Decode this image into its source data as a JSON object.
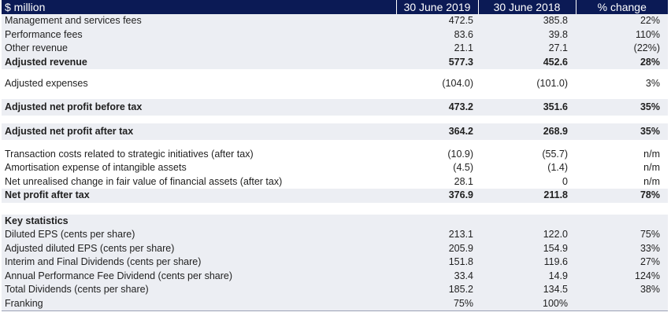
{
  "header": {
    "label": "$ million",
    "col_2019": "30 June 2019",
    "col_2018": "30 June 2018",
    "col_change": "% change"
  },
  "rows": [
    {
      "label": "Management and services fees",
      "v2019": "472.5",
      "v2018": "385.8",
      "change": "22%"
    },
    {
      "label": "Performance fees",
      "v2019": "83.6",
      "v2018": "39.8",
      "change": "110%"
    },
    {
      "label": "Other revenue",
      "v2019": "21.1",
      "v2018": "27.1",
      "change": "(22%)"
    },
    {
      "label": "Adjusted revenue",
      "v2019": "577.3",
      "v2018": "452.6",
      "change": "28%"
    },
    {
      "label": "Adjusted expenses",
      "v2019": "(104.0)",
      "v2018": "(101.0)",
      "change": "3%"
    },
    {
      "label": "Adjusted net profit before tax",
      "v2019": "473.2",
      "v2018": "351.6",
      "change": "35%"
    },
    {
      "label": "Adjusted net profit after tax",
      "v2019": "364.2",
      "v2018": "268.9",
      "change": "35%"
    },
    {
      "label": "Transaction costs related to strategic initiatives (after tax)",
      "v2019": "(10.9)",
      "v2018": "(55.7)",
      "change": "n/m"
    },
    {
      "label": "Amortisation expense of intangible assets",
      "v2019": "(4.5)",
      "v2018": "(1.4)",
      "change": "n/m"
    },
    {
      "label": "Net unrealised change in fair value of financial assets (after tax)",
      "v2019": "28.1",
      "v2018": "0",
      "change": "n/m"
    },
    {
      "label": "Net profit after tax",
      "v2019": "376.9",
      "v2018": "211.8",
      "change": "78%"
    }
  ],
  "key_statistics": {
    "title": "Key statistics",
    "rows": [
      {
        "label": "Diluted EPS (cents per share)",
        "v2019": "213.1",
        "v2018": "122.0",
        "change": "75%"
      },
      {
        "label": "Adjusted diluted EPS (cents per share)",
        "v2019": "205.9",
        "v2018": "154.9",
        "change": "33%"
      },
      {
        "label": "Interim and Final Dividends (cents per share)",
        "v2019": "151.8",
        "v2018": "119.6",
        "change": "27%"
      },
      {
        "label": "Annual Performance Fee Dividend (cents per share)",
        "v2019": "33.4",
        "v2018": "14.9",
        "change": "124%"
      },
      {
        "label": "Total Dividends (cents per share)",
        "v2019": "185.2",
        "v2018": "134.5",
        "change": "38%"
      },
      {
        "label": "Franking",
        "v2019": "75%",
        "v2018": "100%",
        "change": ""
      }
    ]
  },
  "colors": {
    "header_bg": "#0b1a55",
    "shade_bg": "#eceef3"
  }
}
